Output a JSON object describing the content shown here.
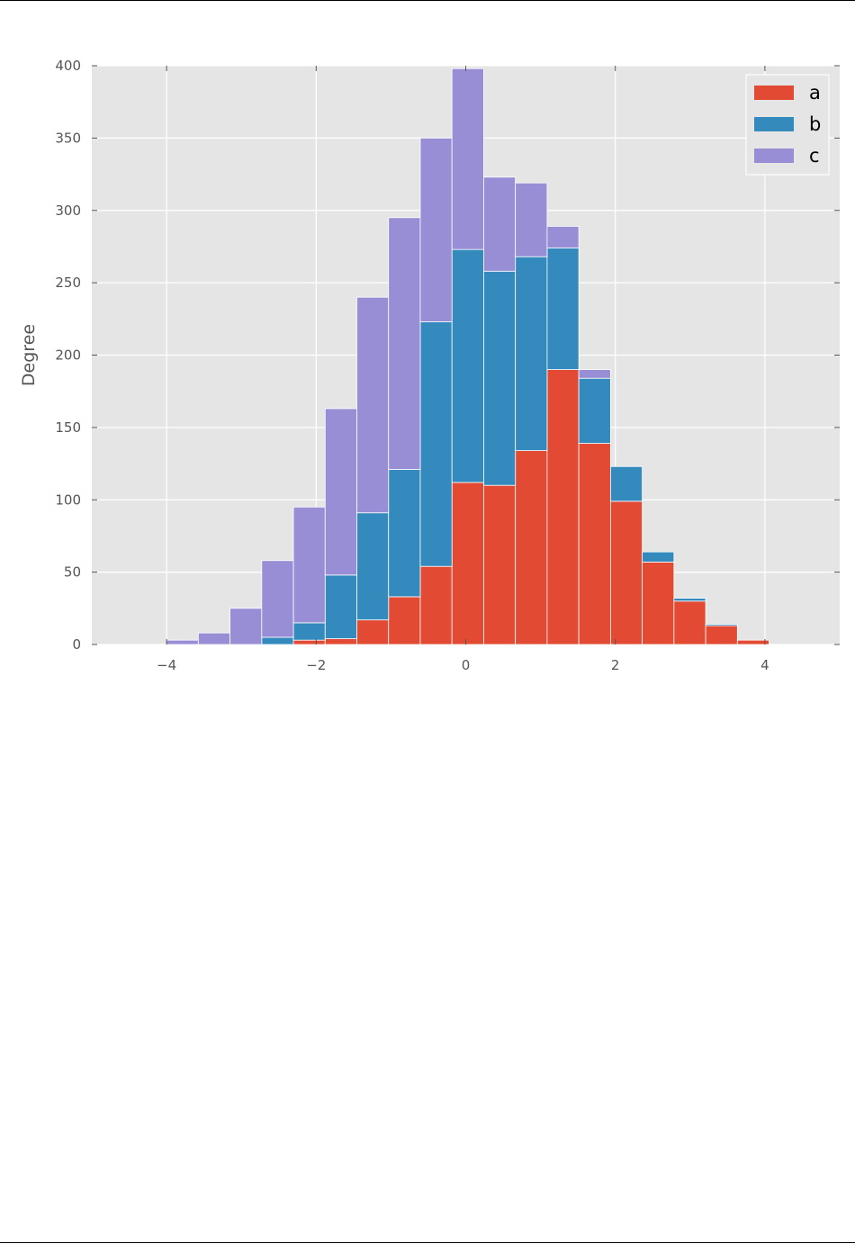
{
  "chart_data": {
    "type": "bar",
    "stacked": true,
    "histogram": true,
    "title": "",
    "xlabel": "",
    "ylabel": "Degree",
    "xlim": [
      -5,
      5
    ],
    "ylim": [
      0,
      400
    ],
    "xticks": [
      -4,
      -2,
      0,
      2,
      4
    ],
    "xtick_labels": [
      "−4",
      "−2",
      "0",
      "2",
      "4"
    ],
    "yticks": [
      0,
      50,
      100,
      150,
      200,
      250,
      300,
      350,
      400
    ],
    "ytick_labels": [
      "0",
      "50",
      "100",
      "150",
      "200",
      "250",
      "300",
      "350",
      "400"
    ],
    "grid": true,
    "legend_position": "top-right",
    "bin_edges": [
      -4.0,
      -3.576,
      -3.152,
      -2.728,
      -2.304,
      -1.88,
      -1.456,
      -1.032,
      -0.608,
      -0.184,
      0.24,
      0.664,
      1.088,
      1.512,
      1.936,
      2.36,
      2.784,
      3.208,
      3.632,
      4.056
    ],
    "series": [
      {
        "name": "a",
        "color": "#E24A33",
        "values": [
          0,
          0,
          0,
          0,
          3,
          4,
          17,
          33,
          54,
          112,
          110,
          134,
          190,
          139,
          99,
          57,
          30,
          13,
          3
        ]
      },
      {
        "name": "b",
        "color": "#348ABD",
        "values": [
          0,
          0,
          0,
          5,
          12,
          44,
          74,
          88,
          169,
          161,
          148,
          134,
          84,
          45,
          24,
          7,
          2,
          1,
          0
        ]
      },
      {
        "name": "c",
        "color": "#988ED5",
        "values": [
          3,
          8,
          25,
          53,
          80,
          115,
          149,
          174,
          127,
          125,
          65,
          51,
          15,
          6,
          0,
          0,
          0,
          0,
          0
        ]
      }
    ]
  }
}
